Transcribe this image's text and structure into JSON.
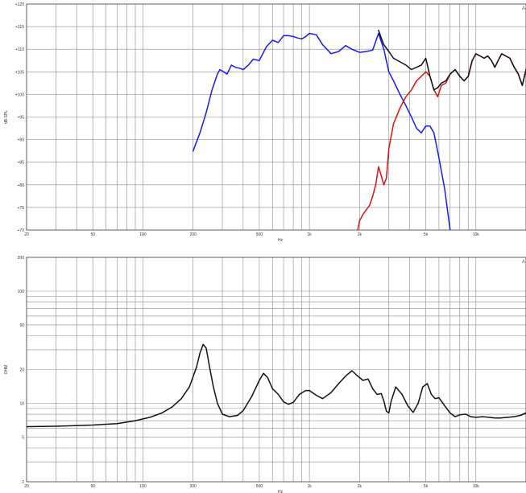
{
  "chart_data": [
    {
      "type": "line",
      "title": "",
      "xlabel": "Hz",
      "ylabel": "dB SPL",
      "xscale": "log",
      "xlim": [
        20,
        20000
      ],
      "ylim": [
        70,
        120
      ],
      "xticks": [
        {
          "v": 20,
          "label": "20"
        },
        {
          "v": 50,
          "label": "50"
        },
        {
          "v": 100,
          "label": "100"
        },
        {
          "v": 200,
          "label": "200"
        },
        {
          "v": 500,
          "label": "500"
        },
        {
          "v": 1000,
          "label": "1k"
        },
        {
          "v": 2000,
          "label": "2k"
        },
        {
          "v": 5000,
          "label": "5k"
        },
        {
          "v": 10000,
          "label": "10k"
        }
      ],
      "yticks": [
        {
          "v": 120,
          "label": "+120"
        },
        {
          "v": 115,
          "label": "+115"
        },
        {
          "v": 110,
          "label": "+110"
        },
        {
          "v": 105,
          "label": "+105"
        },
        {
          "v": 100,
          "label": "+100"
        },
        {
          "v": 95,
          "label": "+95"
        },
        {
          "v": 90,
          "label": "+90"
        },
        {
          "v": 85,
          "label": "+85"
        },
        {
          "v": 80,
          "label": "+80"
        },
        {
          "v": 75,
          "label": "+75"
        },
        {
          "v": 70,
          "label": "+70"
        }
      ],
      "grid": true,
      "corner_mark": "A",
      "series": [
        {
          "color": "#1a1aee",
          "points": [
            [
              200,
              87.5
            ],
            [
              220,
              91.5
            ],
            [
              240,
              96
            ],
            [
              260,
              101
            ],
            [
              280,
              104.5
            ],
            [
              290,
              105.5
            ],
            [
              305,
              105
            ],
            [
              320,
              104.5
            ],
            [
              340,
              106.5
            ],
            [
              360,
              106
            ],
            [
              380,
              105.8
            ],
            [
              400,
              105.5
            ],
            [
              430,
              106.5
            ],
            [
              460,
              107.8
            ],
            [
              500,
              107.5
            ],
            [
              550,
              110.5
            ],
            [
              600,
              112
            ],
            [
              650,
              111.5
            ],
            [
              700,
              113
            ],
            [
              750,
              113
            ],
            [
              800,
              112.8
            ],
            [
              850,
              112.5
            ],
            [
              900,
              112.3
            ],
            [
              950,
              112.8
            ],
            [
              1000,
              113.5
            ],
            [
              1100,
              113.2
            ],
            [
              1200,
              111
            ],
            [
              1350,
              109
            ],
            [
              1500,
              109.5
            ],
            [
              1650,
              110.8
            ],
            [
              1800,
              110
            ],
            [
              2000,
              109.3
            ],
            [
              2200,
              109.5
            ],
            [
              2400,
              109.8
            ],
            [
              2600,
              113.5
            ],
            [
              2800,
              110
            ],
            [
              3000,
              105
            ],
            [
              3200,
              103
            ],
            [
              3500,
              100
            ],
            [
              3800,
              97.5
            ],
            [
              4100,
              95
            ],
            [
              4400,
              92.5
            ],
            [
              4700,
              91.5
            ],
            [
              5000,
              93
            ],
            [
              5300,
              93
            ],
            [
              5600,
              91.5
            ],
            [
              6000,
              86
            ],
            [
              6500,
              79
            ],
            [
              7000,
              70
            ]
          ]
        },
        {
          "color": "#dd1111",
          "points": [
            [
              1950,
              70
            ],
            [
              2000,
              72
            ],
            [
              2100,
              73.5
            ],
            [
              2200,
              74.5
            ],
            [
              2300,
              75.5
            ],
            [
              2400,
              77.5
            ],
            [
              2500,
              80
            ],
            [
              2600,
              84
            ],
            [
              2700,
              82
            ],
            [
              2800,
              80
            ],
            [
              2900,
              81.5
            ],
            [
              3000,
              88
            ],
            [
              3200,
              93.5
            ],
            [
              3500,
              97
            ],
            [
              3800,
              99.5
            ],
            [
              4100,
              101
            ],
            [
              4400,
              103
            ],
            [
              4700,
              104
            ],
            [
              5000,
              105
            ],
            [
              5300,
              104
            ],
            [
              5600,
              101
            ],
            [
              5900,
              99.5
            ],
            [
              6200,
              102
            ],
            [
              6600,
              102.5
            ],
            [
              7000,
              104.5
            ],
            [
              7500,
              105.5
            ],
            [
              8000,
              104
            ],
            [
              8500,
              103
            ],
            [
              9000,
              104
            ],
            [
              9500,
              107.5
            ],
            [
              10000,
              109
            ],
            [
              10600,
              108.5
            ],
            [
              11200,
              108
            ],
            [
              11800,
              108.5
            ],
            [
              12400,
              107.5
            ],
            [
              13000,
              106
            ],
            [
              13600,
              107.5
            ],
            [
              14300,
              109
            ],
            [
              15100,
              108.5
            ],
            [
              16000,
              108
            ],
            [
              17000,
              106
            ],
            [
              18000,
              104.5
            ],
            [
              19000,
              102
            ],
            [
              20000,
              105.5
            ]
          ]
        },
        {
          "color": "#111111",
          "points": [
            [
              2600,
              114.2
            ],
            [
              2700,
              112.5
            ],
            [
              2800,
              111
            ],
            [
              3000,
              109.5
            ],
            [
              3200,
              108
            ],
            [
              3500,
              107.2
            ],
            [
              3800,
              106.5
            ],
            [
              4100,
              105.5
            ],
            [
              4400,
              106
            ],
            [
              4700,
              106.5
            ],
            [
              5000,
              108
            ],
            [
              5300,
              104
            ],
            [
              5600,
              101
            ],
            [
              5900,
              101.5
            ],
            [
              6200,
              102.5
            ],
            [
              6600,
              103
            ],
            [
              7000,
              104.5
            ],
            [
              7500,
              105.5
            ],
            [
              8000,
              104
            ],
            [
              8500,
              103
            ],
            [
              9000,
              104
            ],
            [
              9500,
              107.5
            ],
            [
              10000,
              109
            ],
            [
              10600,
              108.5
            ],
            [
              11200,
              108
            ],
            [
              11800,
              108.5
            ],
            [
              12400,
              107.5
            ],
            [
              13000,
              106
            ],
            [
              13600,
              107.5
            ],
            [
              14300,
              109
            ],
            [
              15100,
              108.5
            ],
            [
              16000,
              108
            ],
            [
              17000,
              106
            ],
            [
              18000,
              104.5
            ],
            [
              19000,
              102
            ],
            [
              20000,
              105.5
            ]
          ]
        }
      ]
    },
    {
      "type": "line",
      "title": "",
      "xlabel": "Hz",
      "ylabel": "OHM",
      "xscale": "log",
      "yscale": "log",
      "xlim": [
        20,
        20000
      ],
      "ylim": [
        2,
        200
      ],
      "xticks": [
        {
          "v": 20,
          "label": "20"
        },
        {
          "v": 50,
          "label": "50"
        },
        {
          "v": 100,
          "label": "100"
        },
        {
          "v": 200,
          "label": "200"
        },
        {
          "v": 500,
          "label": "500"
        },
        {
          "v": 1000,
          "label": "1k"
        },
        {
          "v": 2000,
          "label": "2k"
        },
        {
          "v": 5000,
          "label": "5k"
        },
        {
          "v": 10000,
          "label": "10k"
        }
      ],
      "yticks": [
        {
          "v": 200,
          "label": "200"
        },
        {
          "v": 100,
          "label": "100"
        },
        {
          "v": 50,
          "label": "50"
        },
        {
          "v": 20,
          "label": "20"
        },
        {
          "v": 10,
          "label": "10"
        },
        {
          "v": 5,
          "label": "5"
        },
        {
          "v": 2,
          "label": "2"
        }
      ],
      "grid": true,
      "corner_mark": "A",
      "series": [
        {
          "color": "#111111",
          "points": [
            [
              20,
              6.2
            ],
            [
              30,
              6.25
            ],
            [
              50,
              6.4
            ],
            [
              70,
              6.6
            ],
            [
              90,
              7
            ],
            [
              110,
              7.5
            ],
            [
              130,
              8.2
            ],
            [
              150,
              9.3
            ],
            [
              170,
              11
            ],
            [
              190,
              14
            ],
            [
              210,
              21
            ],
            [
              220,
              28
            ],
            [
              230,
              33.5
            ],
            [
              240,
              31
            ],
            [
              250,
              22
            ],
            [
              265,
              14
            ],
            [
              280,
              10
            ],
            [
              300,
              8
            ],
            [
              330,
              7.6
            ],
            [
              370,
              7.8
            ],
            [
              400,
              8.6
            ],
            [
              450,
              11.5
            ],
            [
              500,
              16
            ],
            [
              530,
              18.5
            ],
            [
              560,
              17
            ],
            [
              600,
              13.5
            ],
            [
              650,
              12
            ],
            [
              700,
              10.3
            ],
            [
              750,
              9.8
            ],
            [
              800,
              10.2
            ],
            [
              870,
              12
            ],
            [
              950,
              13
            ],
            [
              1000,
              13
            ],
            [
              1100,
              11.8
            ],
            [
              1200,
              11
            ],
            [
              1350,
              12.5
            ],
            [
              1500,
              15
            ],
            [
              1650,
              17.5
            ],
            [
              1800,
              19.5
            ],
            [
              1950,
              17.5
            ],
            [
              2100,
              16
            ],
            [
              2250,
              16.5
            ],
            [
              2400,
              13.5
            ],
            [
              2550,
              12
            ],
            [
              2700,
              12.2
            ],
            [
              2800,
              10.5
            ],
            [
              2900,
              8.5
            ],
            [
              3000,
              8.2
            ],
            [
              3100,
              10.5
            ],
            [
              3300,
              14
            ],
            [
              3600,
              12
            ],
            [
              3900,
              9.5
            ],
            [
              4200,
              8.3
            ],
            [
              4500,
              10
            ],
            [
              4800,
              14
            ],
            [
              5100,
              15
            ],
            [
              5400,
              12
            ],
            [
              5700,
              11
            ],
            [
              6000,
              11.2
            ],
            [
              6500,
              9.5
            ],
            [
              7000,
              8.2
            ],
            [
              7500,
              7.6
            ],
            [
              8000,
              7.9
            ],
            [
              8700,
              8
            ],
            [
              9300,
              7.6
            ],
            [
              10000,
              7.5
            ],
            [
              11000,
              7.6
            ],
            [
              12000,
              7.5
            ],
            [
              13000,
              7.4
            ],
            [
              14000,
              7.4
            ],
            [
              15500,
              7.5
            ],
            [
              17000,
              7.6
            ],
            [
              18500,
              7.8
            ],
            [
              20000,
              8.2
            ]
          ]
        }
      ]
    }
  ]
}
